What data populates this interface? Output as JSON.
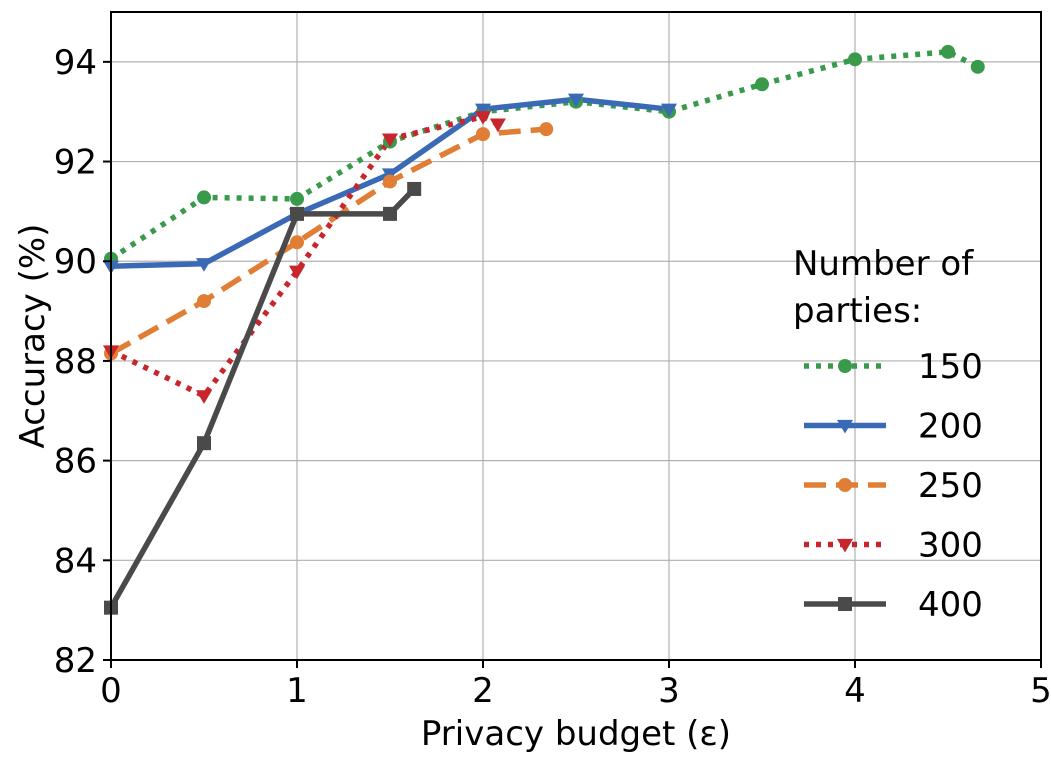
{
  "chart_data": {
    "type": "line",
    "xlabel": "Privacy budget (ε)",
    "ylabel": "Accuracy (%)",
    "xlim": [
      0,
      5
    ],
    "ylim": [
      82,
      95
    ],
    "xticks": [
      "0",
      "1",
      "2",
      "3",
      "4",
      "5"
    ],
    "yticks": [
      "82",
      "84",
      "86",
      "88",
      "90",
      "92",
      "94"
    ],
    "grid": true,
    "legend": {
      "title": "Number of parties:",
      "title_lines": [
        "Number of",
        "parties:"
      ],
      "placement": "right"
    },
    "series": [
      {
        "name": "150",
        "color": "#3a9a4b",
        "linestyle": "dotted",
        "marker": "circle",
        "x": [
          0,
          0.5,
          1,
          1.5,
          2,
          2.5,
          3,
          3.5,
          4,
          4.5,
          4.66
        ],
        "y": [
          90.05,
          91.28,
          91.25,
          92.4,
          93.0,
          93.2,
          93.0,
          93.55,
          94.05,
          94.2,
          93.9
        ]
      },
      {
        "name": "200",
        "color": "#3a6ab5",
        "linestyle": "solid",
        "marker": "triangle-down",
        "x": [
          0,
          0.5,
          1,
          1.5,
          2,
          2.5,
          3
        ],
        "y": [
          89.9,
          89.95,
          90.95,
          91.75,
          93.05,
          93.25,
          93.05
        ]
      },
      {
        "name": "250",
        "color": "#e07e35",
        "linestyle": "dashed",
        "marker": "circle",
        "x": [
          0,
          0.5,
          1,
          1.5,
          2,
          2.34
        ],
        "y": [
          88.15,
          89.2,
          90.38,
          91.6,
          92.55,
          92.65
        ]
      },
      {
        "name": "300",
        "color": "#c8262d",
        "linestyle": "dotted",
        "marker": "triangle-down",
        "x": [
          0,
          0.5,
          1,
          1.5,
          2,
          2.08
        ],
        "y": [
          88.2,
          87.3,
          89.8,
          92.45,
          92.9,
          92.75
        ]
      },
      {
        "name": "400",
        "color": "#4a4a4a",
        "linestyle": "solid",
        "marker": "square",
        "x": [
          0,
          0.5,
          1,
          1.5,
          1.63
        ],
        "y": [
          83.05,
          86.35,
          90.95,
          90.95,
          91.45
        ]
      }
    ]
  }
}
